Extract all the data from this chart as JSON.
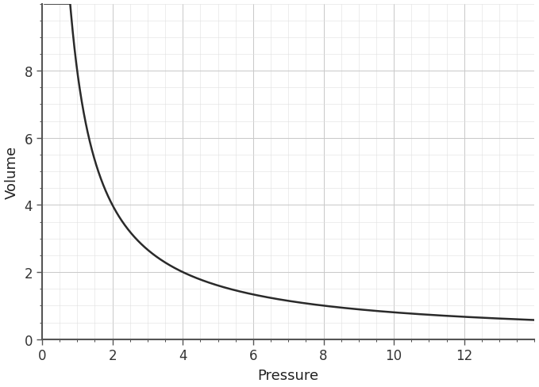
{
  "xlabel": "Pressure",
  "ylabel": "Volume",
  "xlim": [
    0,
    14
  ],
  "ylim": [
    0,
    10.0
  ],
  "xticks": [
    0,
    2,
    4,
    6,
    8,
    10,
    12
  ],
  "yticks": [
    0,
    2,
    4,
    6,
    8
  ],
  "curve_constant": 8.0,
  "x_start": 0.08,
  "x_end": 14.0,
  "curve_color": "#2a2a2a",
  "curve_linewidth": 1.8,
  "background_color": "#ffffff",
  "grid_major_color": "#c8c8c8",
  "grid_major_linewidth": 0.7,
  "grid_minor_color": "#e0e0e0",
  "grid_minor_linewidth": 0.4,
  "xlabel_fontsize": 13,
  "ylabel_fontsize": 13,
  "tick_fontsize": 12,
  "spine_color": "#555555",
  "spine_linewidth": 1.5
}
